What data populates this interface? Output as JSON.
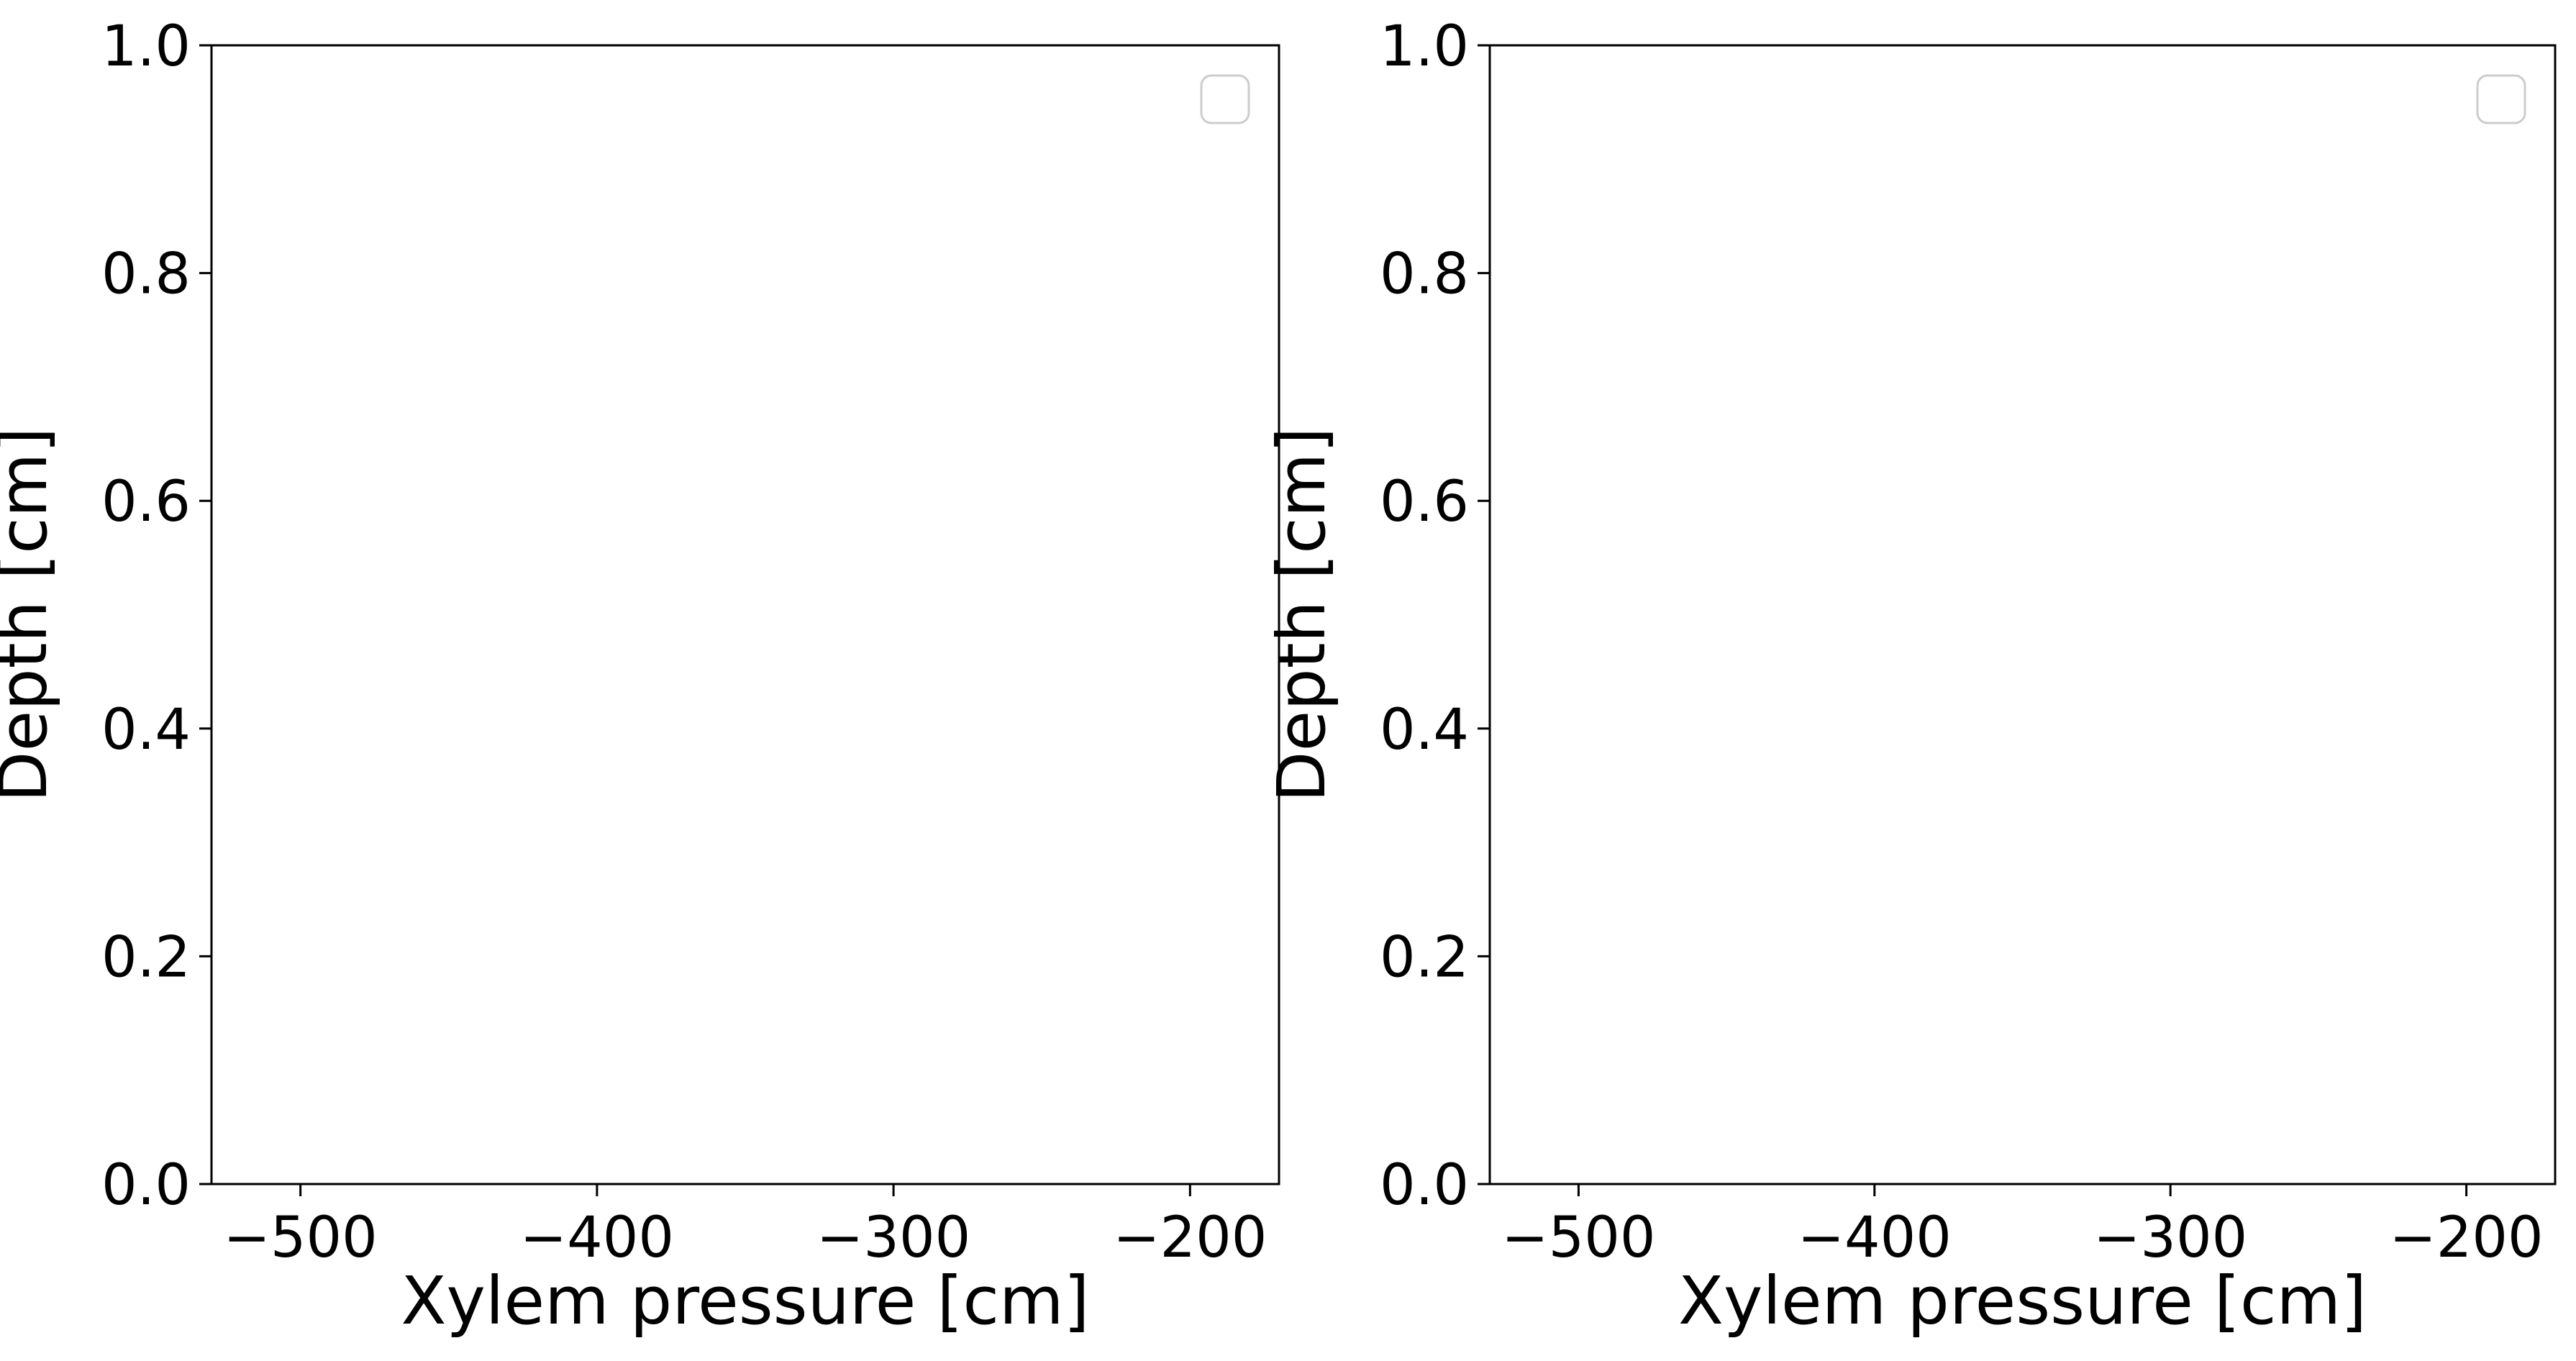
{
  "chart_data": [
    {
      "type": "line",
      "xlabel": "Xylem pressure [cm]",
      "ylabel": "Depth [cm]",
      "xlim": [
        -530,
        -170
      ],
      "ylim": [
        0.0,
        1.0
      ],
      "xticks": [
        -500,
        -400,
        -300,
        -200
      ],
      "xtick_labels": [
        "−500",
        "−400",
        "−300",
        "−200"
      ],
      "yticks": [
        0.0,
        0.2,
        0.4,
        0.6,
        0.8,
        1.0
      ],
      "ytick_labels": [
        "0.0",
        "0.2",
        "0.4",
        "0.6",
        "0.8",
        "1.0"
      ],
      "series": [],
      "legend": {
        "placement": "top-right",
        "entries": []
      },
      "grid": false
    },
    {
      "type": "line",
      "xlabel": "Xylem pressure [cm]",
      "ylabel": "Depth [cm]",
      "xlim": [
        -530,
        -170
      ],
      "ylim": [
        0.0,
        1.0
      ],
      "xticks": [
        -500,
        -400,
        -300,
        -200
      ],
      "xtick_labels": [
        "−500",
        "−400",
        "−300",
        "−200"
      ],
      "yticks": [
        0.0,
        0.2,
        0.4,
        0.6,
        0.8,
        1.0
      ],
      "ytick_labels": [
        "0.0",
        "0.2",
        "0.4",
        "0.6",
        "0.8",
        "1.0"
      ],
      "series": [],
      "legend": {
        "placement": "top-right",
        "entries": []
      },
      "grid": false
    }
  ],
  "colors": {
    "axis": "#000000",
    "legend_border": "#cccccc",
    "background": "#ffffff"
  }
}
